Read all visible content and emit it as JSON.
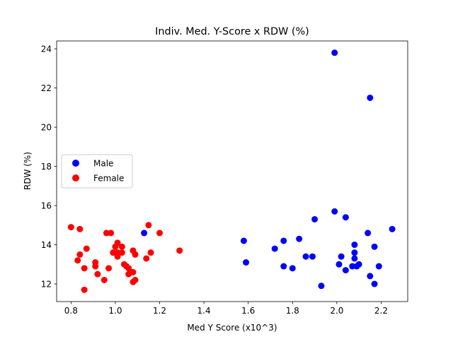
{
  "chart_data": {
    "type": "scatter",
    "title": "Indiv. Med. Y-Score x RDW (%)",
    "xlabel": "Med Y Score (x10^3)",
    "ylabel": "RDW (%)",
    "xlim": [
      0.735,
      2.32
    ],
    "ylim": [
      11.1,
      24.4
    ],
    "xticks": [
      0.8,
      1.0,
      1.2,
      1.4,
      1.6,
      1.8,
      2.0,
      2.2
    ],
    "xtick_labels": [
      "0.8",
      "1.0",
      "1.2",
      "1.4",
      "1.6",
      "1.8",
      "2.0",
      "2.2"
    ],
    "yticks": [
      12,
      14,
      16,
      18,
      20,
      22,
      24
    ],
    "ytick_labels": [
      "12",
      "14",
      "16",
      "18",
      "20",
      "22",
      "24"
    ],
    "grid": false,
    "legend_position": "center-left",
    "series": [
      {
        "name": "Male",
        "color": "#0000ff",
        "points": [
          [
            1.99,
            23.8
          ],
          [
            2.15,
            21.5
          ],
          [
            1.99,
            15.7
          ],
          [
            2.04,
            15.4
          ],
          [
            1.9,
            15.3
          ],
          [
            2.25,
            14.8
          ],
          [
            2.14,
            14.6
          ],
          [
            1.13,
            14.6
          ],
          [
            1.58,
            14.2
          ],
          [
            1.76,
            14.2
          ],
          [
            1.83,
            14.3
          ],
          [
            2.08,
            14.0
          ],
          [
            2.17,
            13.9
          ],
          [
            1.72,
            13.8
          ],
          [
            2.08,
            13.6
          ],
          [
            1.86,
            13.4
          ],
          [
            1.89,
            13.4
          ],
          [
            2.02,
            13.4
          ],
          [
            2.08,
            13.3
          ],
          [
            1.59,
            13.1
          ],
          [
            2.1,
            13.0
          ],
          [
            2.01,
            13.0
          ],
          [
            2.09,
            12.9
          ],
          [
            2.07,
            12.9
          ],
          [
            1.76,
            12.9
          ],
          [
            2.19,
            12.9
          ],
          [
            1.8,
            12.8
          ],
          [
            2.04,
            12.7
          ],
          [
            2.15,
            12.4
          ],
          [
            2.17,
            12.0
          ],
          [
            1.93,
            11.9
          ]
        ]
      },
      {
        "name": "Female",
        "color": "#ff0000",
        "points": [
          [
            0.8,
            14.9
          ],
          [
            0.84,
            14.8
          ],
          [
            1.15,
            15.0
          ],
          [
            0.96,
            14.6
          ],
          [
            0.98,
            14.6
          ],
          [
            1.2,
            14.6
          ],
          [
            1.01,
            14.1
          ],
          [
            1.0,
            13.9
          ],
          [
            1.03,
            13.9
          ],
          [
            0.87,
            13.8
          ],
          [
            1.29,
            13.7
          ],
          [
            1.08,
            13.7
          ],
          [
            1.01,
            13.6
          ],
          [
            1.03,
            13.6
          ],
          [
            1.16,
            13.6
          ],
          [
            0.99,
            13.6
          ],
          [
            1.09,
            13.5
          ],
          [
            0.84,
            13.5
          ],
          [
            1.01,
            13.4
          ],
          [
            1.14,
            13.3
          ],
          [
            0.83,
            13.2
          ],
          [
            0.91,
            13.1
          ],
          [
            1.04,
            13.0
          ],
          [
            1.05,
            12.9
          ],
          [
            0.91,
            12.9
          ],
          [
            1.06,
            12.8
          ],
          [
            0.97,
            12.8
          ],
          [
            0.86,
            12.8
          ],
          [
            1.08,
            12.6
          ],
          [
            1.06,
            12.5
          ],
          [
            0.92,
            12.5
          ],
          [
            1.09,
            12.2
          ],
          [
            0.95,
            12.2
          ],
          [
            1.08,
            12.1
          ],
          [
            0.86,
            11.7
          ]
        ]
      }
    ]
  }
}
